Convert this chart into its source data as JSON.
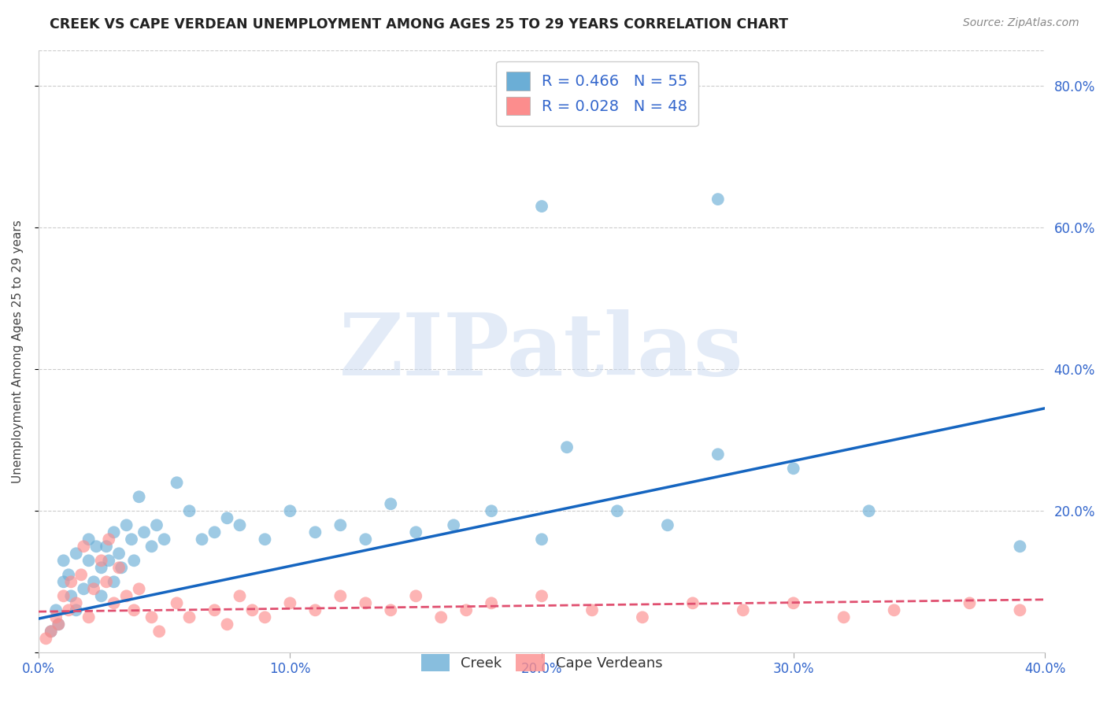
{
  "title": "CREEK VS CAPE VERDEAN UNEMPLOYMENT AMONG AGES 25 TO 29 YEARS CORRELATION CHART",
  "source": "Source: ZipAtlas.com",
  "ylabel": "Unemployment Among Ages 25 to 29 years",
  "xlim": [
    0.0,
    0.4
  ],
  "ylim": [
    0.0,
    0.85
  ],
  "x_ticks": [
    0.0,
    0.1,
    0.2,
    0.3,
    0.4
  ],
  "x_tick_labels": [
    "0.0%",
    "10.0%",
    "20.0%",
    "30.0%",
    "40.0%"
  ],
  "y_ticks": [
    0.0,
    0.2,
    0.4,
    0.6,
    0.8
  ],
  "y_tick_labels": [
    "",
    "20.0%",
    "40.0%",
    "60.0%",
    "80.0%"
  ],
  "creek_color": "#6baed6",
  "cape_color": "#fc8d8d",
  "creek_line_color": "#1565c0",
  "cape_line_color": "#e05070",
  "creek_R": 0.466,
  "creek_N": 55,
  "cape_R": 0.028,
  "cape_N": 48,
  "watermark": "ZIPatlas",
  "grid_color": "#cccccc",
  "background_color": "#ffffff",
  "creek_scatter_x": [
    0.005,
    0.007,
    0.008,
    0.01,
    0.01,
    0.012,
    0.013,
    0.015,
    0.015,
    0.018,
    0.02,
    0.02,
    0.022,
    0.023,
    0.025,
    0.025,
    0.027,
    0.028,
    0.03,
    0.03,
    0.032,
    0.033,
    0.035,
    0.037,
    0.038,
    0.04,
    0.042,
    0.045,
    0.047,
    0.05,
    0.055,
    0.06,
    0.065,
    0.07,
    0.075,
    0.08,
    0.09,
    0.1,
    0.11,
    0.12,
    0.13,
    0.14,
    0.15,
    0.165,
    0.18,
    0.2,
    0.21,
    0.23,
    0.25,
    0.27,
    0.3,
    0.33,
    0.2,
    0.27,
    0.39
  ],
  "creek_scatter_y": [
    0.03,
    0.06,
    0.04,
    0.1,
    0.13,
    0.11,
    0.08,
    0.06,
    0.14,
    0.09,
    0.13,
    0.16,
    0.1,
    0.15,
    0.12,
    0.08,
    0.15,
    0.13,
    0.1,
    0.17,
    0.14,
    0.12,
    0.18,
    0.16,
    0.13,
    0.22,
    0.17,
    0.15,
    0.18,
    0.16,
    0.24,
    0.2,
    0.16,
    0.17,
    0.19,
    0.18,
    0.16,
    0.2,
    0.17,
    0.18,
    0.16,
    0.21,
    0.17,
    0.18,
    0.2,
    0.16,
    0.29,
    0.2,
    0.18,
    0.28,
    0.26,
    0.2,
    0.63,
    0.64,
    0.15
  ],
  "cape_scatter_x": [
    0.003,
    0.005,
    0.007,
    0.008,
    0.01,
    0.012,
    0.013,
    0.015,
    0.017,
    0.018,
    0.02,
    0.022,
    0.025,
    0.027,
    0.028,
    0.03,
    0.032,
    0.035,
    0.038,
    0.04,
    0.045,
    0.048,
    0.055,
    0.06,
    0.07,
    0.075,
    0.08,
    0.085,
    0.09,
    0.1,
    0.11,
    0.12,
    0.13,
    0.14,
    0.15,
    0.16,
    0.17,
    0.18,
    0.2,
    0.22,
    0.24,
    0.26,
    0.28,
    0.3,
    0.32,
    0.34,
    0.37,
    0.39
  ],
  "cape_scatter_y": [
    0.02,
    0.03,
    0.05,
    0.04,
    0.08,
    0.06,
    0.1,
    0.07,
    0.11,
    0.15,
    0.05,
    0.09,
    0.13,
    0.1,
    0.16,
    0.07,
    0.12,
    0.08,
    0.06,
    0.09,
    0.05,
    0.03,
    0.07,
    0.05,
    0.06,
    0.04,
    0.08,
    0.06,
    0.05,
    0.07,
    0.06,
    0.08,
    0.07,
    0.06,
    0.08,
    0.05,
    0.06,
    0.07,
    0.08,
    0.06,
    0.05,
    0.07,
    0.06,
    0.07,
    0.05,
    0.06,
    0.07,
    0.06
  ],
  "creek_line_x": [
    0.0,
    0.4
  ],
  "creek_line_y": [
    0.048,
    0.345
  ],
  "cape_line_x": [
    0.0,
    0.4
  ],
  "cape_line_y": [
    0.058,
    0.075
  ]
}
